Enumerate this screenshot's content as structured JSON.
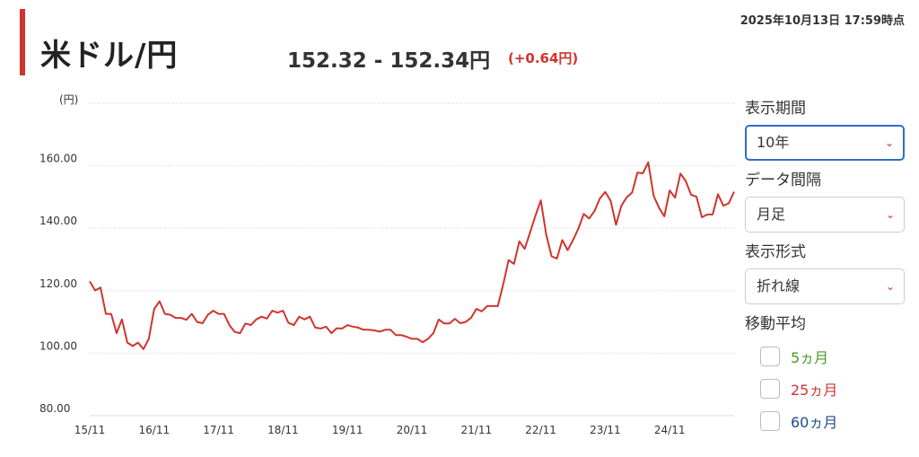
{
  "header": {
    "title": "米ドル/円",
    "rate": "152.32 - 152.34円",
    "change": "(+0.64円)",
    "timestamp": "2025年10月13日 17:59時点"
  },
  "colors": {
    "accent": "#d0342c",
    "line": "#d0342c",
    "change": "#d0342c",
    "ma5": "#4a9a2a",
    "ma25": "#d0342c",
    "ma60": "#1f4a8c"
  },
  "controls": {
    "period_label": "表示期間",
    "period_value": "10年",
    "interval_label": "データ間隔",
    "interval_value": "月足",
    "format_label": "表示形式",
    "format_value": "折れ線",
    "ma_label": "移動平均",
    "ma_options": [
      "5ヵ月",
      "25ヵ月",
      "60ヵ月"
    ],
    "chevron_icon": "chevron-down-icon"
  },
  "chart_data": {
    "type": "line",
    "unit_label": "(円)",
    "y_ticks": [
      "160.00",
      "140.00",
      "120.00",
      "100.00",
      "80.00"
    ],
    "ylim": [
      80,
      180
    ],
    "x_ticks": [
      "15/11",
      "16/11",
      "17/11",
      "18/11",
      "19/11",
      "20/11",
      "21/11",
      "22/11",
      "23/11",
      "24/11"
    ],
    "grid": true,
    "values": [
      123.0,
      120.1,
      121.0,
      112.6,
      112.6,
      106.4,
      110.8,
      103.4,
      102.3,
      103.4,
      101.3,
      104.6,
      114.2,
      116.6,
      112.6,
      112.3,
      111.3,
      111.3,
      110.7,
      112.6,
      110.0,
      109.6,
      112.3,
      113.6,
      112.6,
      112.6,
      109.0,
      106.8,
      106.4,
      109.5,
      109.0,
      110.8,
      111.7,
      111.1,
      113.6,
      113.0,
      113.6,
      109.7,
      109.0,
      111.7,
      110.8,
      111.7,
      108.2,
      107.9,
      108.5,
      106.4,
      108.0,
      107.9,
      109.0,
      108.5,
      108.2,
      107.5,
      107.5,
      107.3,
      106.9,
      107.5,
      107.5,
      105.8,
      105.8,
      105.3,
      104.6,
      104.6,
      103.5,
      104.6,
      106.4,
      110.8,
      109.5,
      109.5,
      111.0,
      109.6,
      110.0,
      111.3,
      114.2,
      113.4,
      115.1,
      115.1,
      115.1,
      122.0,
      129.8,
      128.6,
      135.8,
      133.4,
      138.6,
      144.0,
      148.9,
      138.0,
      131.0,
      130.3,
      136.2,
      133.0,
      136.2,
      139.9,
      144.6,
      143.1,
      145.5,
      149.5,
      151.6,
      148.8,
      141.1,
      147.2,
      149.9,
      151.4,
      157.8,
      157.6,
      161.1,
      150.4,
      146.6,
      143.8,
      152.1,
      149.8,
      157.5,
      155.1,
      150.7,
      150.1,
      143.5,
      144.4,
      144.4,
      150.9,
      147.2,
      148.0,
      151.7
    ]
  }
}
